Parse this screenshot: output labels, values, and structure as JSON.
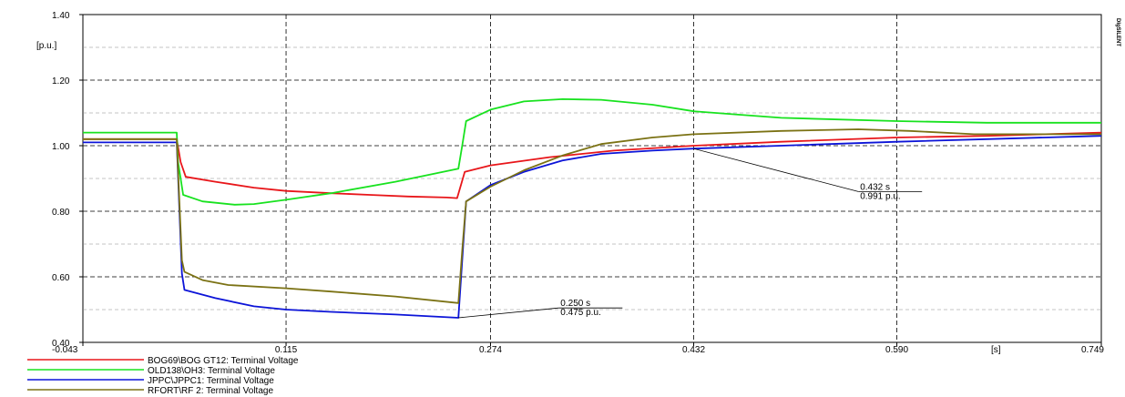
{
  "chart_data": {
    "type": "line",
    "ylabel": "[p.u.]",
    "xlabel": "[s]",
    "brand": "DIgSILENT",
    "xlim": [
      -0.043,
      0.749
    ],
    "ylim": [
      0.4,
      1.4
    ],
    "grid": true,
    "xticks": [
      -0.043,
      0.115,
      0.274,
      0.432,
      0.59,
      0.749
    ],
    "xtick_labels": [
      "-0.043",
      "0.115",
      "0.274",
      "0.432",
      "0.590",
      "0.749"
    ],
    "yticks": [
      0.4,
      0.6,
      0.8,
      1.0,
      1.2,
      1.4
    ],
    "ytick_labels": [
      "0.40",
      "0.60",
      "0.80",
      "1.00",
      "1.20",
      "1.40"
    ],
    "legend_position": "bottom-left",
    "series": [
      {
        "name": "BOG69\\BOG GT12: Terminal Voltage",
        "color": "#e8161a",
        "points": [
          [
            -0.043,
            1.02
          ],
          [
            0.03,
            1.02
          ],
          [
            0.033,
            0.95
          ],
          [
            0.037,
            0.905
          ],
          [
            0.06,
            0.89
          ],
          [
            0.09,
            0.872
          ],
          [
            0.115,
            0.862
          ],
          [
            0.15,
            0.855
          ],
          [
            0.18,
            0.85
          ],
          [
            0.21,
            0.845
          ],
          [
            0.24,
            0.842
          ],
          [
            0.248,
            0.84
          ],
          [
            0.251,
            0.88
          ],
          [
            0.254,
            0.92
          ],
          [
            0.274,
            0.94
          ],
          [
            0.32,
            0.965
          ],
          [
            0.37,
            0.985
          ],
          [
            0.432,
            1.0
          ],
          [
            0.5,
            1.012
          ],
          [
            0.59,
            1.025
          ],
          [
            0.66,
            1.03
          ],
          [
            0.749,
            1.04
          ]
        ]
      },
      {
        "name": "OLD138\\OH3: Terminal Voltage",
        "color": "#18e21f",
        "points": [
          [
            -0.043,
            1.04
          ],
          [
            0.03,
            1.04
          ],
          [
            0.031,
            0.95
          ],
          [
            0.035,
            0.85
          ],
          [
            0.05,
            0.83
          ],
          [
            0.075,
            0.82
          ],
          [
            0.09,
            0.822
          ],
          [
            0.115,
            0.835
          ],
          [
            0.15,
            0.855
          ],
          [
            0.2,
            0.89
          ],
          [
            0.249,
            0.93
          ],
          [
            0.252,
            1.0
          ],
          [
            0.255,
            1.075
          ],
          [
            0.274,
            1.11
          ],
          [
            0.3,
            1.135
          ],
          [
            0.33,
            1.142
          ],
          [
            0.36,
            1.14
          ],
          [
            0.4,
            1.125
          ],
          [
            0.432,
            1.105
          ],
          [
            0.5,
            1.085
          ],
          [
            0.59,
            1.075
          ],
          [
            0.66,
            1.07
          ],
          [
            0.749,
            1.07
          ]
        ]
      },
      {
        "name": "JPPC\\JPPC1: Terminal Voltage",
        "color": "#0c14d8",
        "points": [
          [
            -0.043,
            1.01
          ],
          [
            0.03,
            1.01
          ],
          [
            0.034,
            0.61
          ],
          [
            0.036,
            0.56
          ],
          [
            0.06,
            0.535
          ],
          [
            0.09,
            0.51
          ],
          [
            0.115,
            0.5
          ],
          [
            0.15,
            0.493
          ],
          [
            0.2,
            0.485
          ],
          [
            0.249,
            0.475
          ],
          [
            0.252,
            0.65
          ],
          [
            0.255,
            0.83
          ],
          [
            0.274,
            0.88
          ],
          [
            0.3,
            0.92
          ],
          [
            0.33,
            0.955
          ],
          [
            0.36,
            0.975
          ],
          [
            0.4,
            0.985
          ],
          [
            0.432,
            0.991
          ],
          [
            0.5,
            1.0
          ],
          [
            0.59,
            1.012
          ],
          [
            0.66,
            1.02
          ],
          [
            0.749,
            1.03
          ]
        ]
      },
      {
        "name": "RFORT\\RF 2: Terminal Voltage",
        "color": "#7b7214",
        "points": [
          [
            -0.043,
            1.02
          ],
          [
            0.03,
            1.02
          ],
          [
            0.034,
            0.65
          ],
          [
            0.036,
            0.615
          ],
          [
            0.05,
            0.59
          ],
          [
            0.07,
            0.575
          ],
          [
            0.115,
            0.565
          ],
          [
            0.15,
            0.555
          ],
          [
            0.2,
            0.54
          ],
          [
            0.249,
            0.52
          ],
          [
            0.252,
            0.68
          ],
          [
            0.255,
            0.83
          ],
          [
            0.274,
            0.875
          ],
          [
            0.3,
            0.925
          ],
          [
            0.33,
            0.97
          ],
          [
            0.36,
            1.005
          ],
          [
            0.4,
            1.025
          ],
          [
            0.432,
            1.035
          ],
          [
            0.5,
            1.045
          ],
          [
            0.56,
            1.05
          ],
          [
            0.6,
            1.045
          ],
          [
            0.65,
            1.035
          ],
          [
            0.7,
            1.035
          ],
          [
            0.749,
            1.035
          ]
        ]
      }
    ],
    "annotations": [
      {
        "lines": [
          "0.250 s",
          "0.475 p.u."
        ],
        "anchor": [
          0.249,
          0.475
        ],
        "label_at": [
          0.327,
          0.505
        ]
      },
      {
        "lines": [
          "0.432 s",
          "0.991 p.u."
        ],
        "anchor": [
          0.432,
          0.991
        ],
        "label_at": [
          0.56,
          0.86
        ]
      }
    ]
  }
}
